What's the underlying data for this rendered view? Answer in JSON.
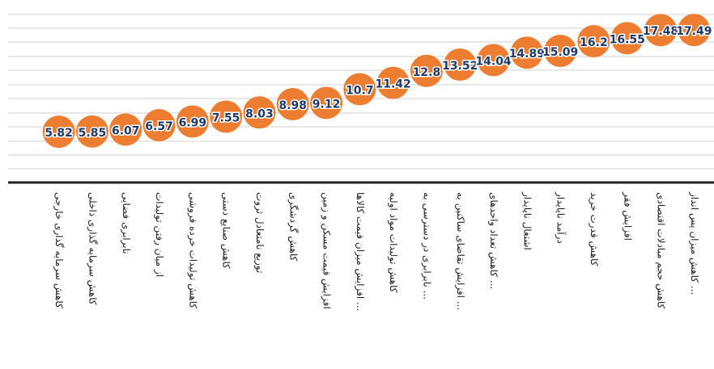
{
  "chart_data": {
    "type": "line",
    "categories": [
      "کاهش سرمایه گذاری خارجی",
      "کاهش سرمایه گذاری داخلی",
      "نابرابری فضایی",
      "از میان رفتن تولیدات",
      "کاهش تولیدات خرده فروشی",
      "کاهش صنایع دستی",
      "توزیع نامتعادل ثروت",
      "کاهش گردشگری",
      "افزایش قیمت مسکن و زمین",
      "افزایش میزان قیمت کالاها ...",
      "کاهش تولیدات مواد اولیه",
      "نابرابری در دسترسی به ...",
      "افزایش تقاضای ساکنین به ...",
      "کاهش تعداد واحدهای ...",
      "اشتغال ناپایدار",
      "درآمد ناپایدار",
      "کاهش قدرت خرید",
      "افزایش فقر",
      "کاهش حجم مبادلات اقتصادی",
      "کاهش میزان پس انداز ..."
    ],
    "values": [
      5.82,
      5.85,
      6.07,
      6.57,
      6.99,
      7.55,
      8.03,
      8.98,
      9.12,
      10.7,
      11.42,
      12.8,
      13.52,
      14.04,
      14.89,
      15.09,
      16.2,
      16.55,
      17.48,
      17.49
    ],
    "color": "#ed7d31",
    "ylim": [
      0,
      20
    ]
  }
}
